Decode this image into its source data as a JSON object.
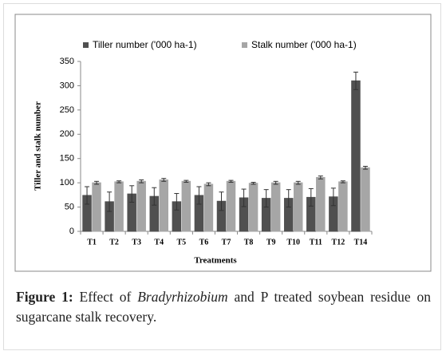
{
  "chart_data": {
    "type": "bar",
    "categories": [
      "T1",
      "T2",
      "T3",
      "T4",
      "T5",
      "T6",
      "T7",
      "T8",
      "T9",
      "T10",
      "T11",
      "T12",
      "T14"
    ],
    "series": [
      {
        "name": "Tiller number ('000 ha-1)",
        "color": "#505050",
        "values": [
          74,
          61,
          77,
          72,
          61,
          74,
          62,
          69,
          68,
          68,
          70,
          71,
          310
        ],
        "errors": [
          18,
          20,
          17,
          18,
          17,
          18,
          19,
          18,
          18,
          18,
          18,
          18,
          18
        ]
      },
      {
        "name": "Stalk number ('000 ha-1)",
        "color": "#a6a6a6",
        "values": [
          100,
          102,
          103,
          106,
          103,
          97,
          103,
          99,
          100,
          100,
          111,
          102,
          131
        ],
        "errors": [
          3,
          2,
          3,
          3,
          2,
          3,
          2,
          2,
          3,
          3,
          3,
          2,
          3
        ]
      }
    ],
    "ylim": [
      0,
      350
    ],
    "yticks": [
      0,
      50,
      100,
      150,
      200,
      250,
      300,
      350
    ],
    "ylabel": "Tiller and stalk number",
    "xlabel": "Treatments",
    "legend": "top"
  },
  "caption": {
    "label": "Figure 1:",
    "parts": [
      " Effect of ",
      "Bradyrhizobium",
      " and P treated soybean residue on sugarcane stalk recovery."
    ]
  }
}
